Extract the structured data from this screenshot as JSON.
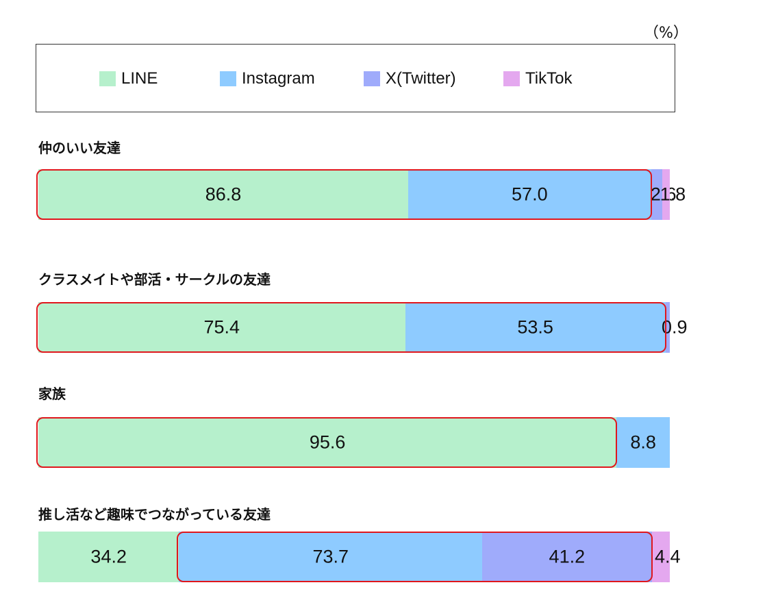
{
  "unit_label": "（%）",
  "colors": {
    "LINE": "#b6f0cc",
    "Instagram": "#8ecbff",
    "X(Twitter)": "#9fabfb",
    "TikTok": "#e4a8ef",
    "highlight": "#e0161c"
  },
  "legend": [
    "LINE",
    "Instagram",
    "X(Twitter)",
    "TikTok"
  ],
  "chart_data": {
    "type": "bar",
    "stacked": true,
    "orientation": "horizontal",
    "unit": "%",
    "series_names": [
      "LINE",
      "Instagram",
      "X(Twitter)",
      "TikTok"
    ],
    "groups": [
      {
        "label": "仲のいい友達",
        "segments": [
          {
            "series": "LINE",
            "value": 86.8,
            "label": "86.8"
          },
          {
            "series": "Instagram",
            "value": 57.0,
            "label": "57.0"
          },
          {
            "series": "X(Twitter)",
            "value": 2.6,
            "label": "2.6"
          },
          {
            "series": "TikTok",
            "value": 1.8,
            "label": "1.8"
          }
        ],
        "highlighted": [
          "LINE",
          "Instagram"
        ]
      },
      {
        "label": "クラスメイトや部活・サークルの友達",
        "segments": [
          {
            "series": "LINE",
            "value": 75.4,
            "label": "75.4"
          },
          {
            "series": "Instagram",
            "value": 53.5,
            "label": "53.5"
          },
          {
            "series": "X(Twitter)",
            "value": 0.9,
            "label": "0.9"
          }
        ],
        "highlighted": [
          "LINE",
          "Instagram"
        ]
      },
      {
        "label": "家族",
        "segments": [
          {
            "series": "LINE",
            "value": 95.6,
            "label": "95.6"
          },
          {
            "series": "Instagram",
            "value": 8.8,
            "label": "8.8"
          }
        ],
        "highlighted": [
          "LINE"
        ]
      },
      {
        "label": "推し活など趣味でつながっている友達",
        "segments": [
          {
            "series": "LINE",
            "value": 34.2,
            "label": "34.2"
          },
          {
            "series": "Instagram",
            "value": 73.7,
            "label": "73.7"
          },
          {
            "series": "X(Twitter)",
            "value": 41.2,
            "label": "41.2"
          },
          {
            "series": "TikTok",
            "value": 4.4,
            "label": "4.4"
          }
        ],
        "highlighted": [
          "Instagram",
          "X(Twitter)"
        ]
      }
    ]
  }
}
